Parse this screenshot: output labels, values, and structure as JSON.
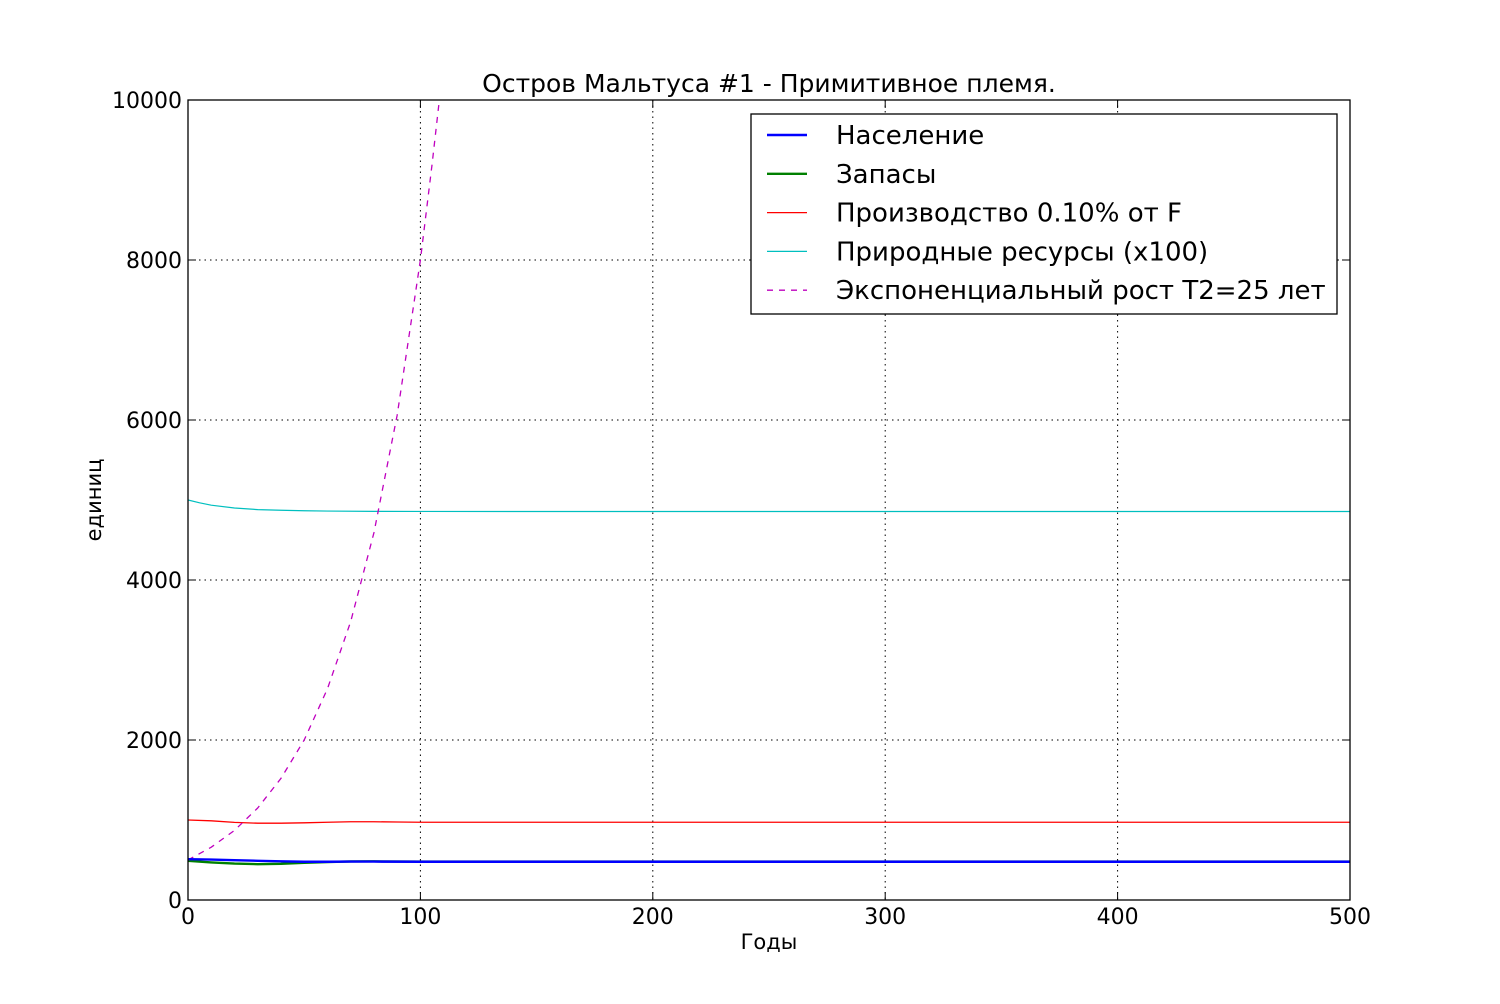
{
  "chart_data": {
    "type": "line",
    "title": "Остров Мальтуса #1 - Примитивное племя.",
    "xlabel": "Годы",
    "ylabel": "единиц",
    "xlim": [
      0,
      500
    ],
    "ylim": [
      0,
      10000
    ],
    "x_ticks": [
      0,
      100,
      200,
      300,
      400,
      500
    ],
    "y_ticks": [
      0,
      2000,
      4000,
      6000,
      8000,
      10000
    ],
    "x_tick_labels": [
      "0",
      "100",
      "200",
      "300",
      "400",
      "500"
    ],
    "y_tick_labels": [
      "0",
      "2000",
      "4000",
      "6000",
      "8000",
      "10000"
    ],
    "grid": true,
    "legend_position": "top-right",
    "series": [
      {
        "name": "Население",
        "color": "#0000ff",
        "style": "solid",
        "x": [
          0,
          10,
          20,
          30,
          40,
          50,
          60,
          70,
          80,
          100,
          150,
          200,
          300,
          400,
          500
        ],
        "y": [
          510,
          505,
          498,
          490,
          483,
          478,
          478,
          480,
          480,
          478,
          478,
          478,
          478,
          478,
          478
        ]
      },
      {
        "name": "Запасы",
        "color": "#008000",
        "style": "solid",
        "x": [
          0,
          10,
          20,
          30,
          40,
          50,
          60,
          70,
          80,
          100,
          150,
          200,
          300,
          400,
          500
        ],
        "y": [
          490,
          470,
          455,
          448,
          452,
          465,
          475,
          482,
          483,
          480,
          480,
          480,
          480,
          480,
          480
        ]
      },
      {
        "name": "Производство  0.10% от F",
        "color": "#ff0000",
        "style": "solid",
        "x": [
          0,
          10,
          20,
          30,
          40,
          50,
          60,
          70,
          80,
          90,
          100,
          150,
          200,
          300,
          400,
          500
        ],
        "y": [
          1000,
          990,
          970,
          960,
          960,
          965,
          972,
          978,
          978,
          975,
          972,
          972,
          972,
          972,
          972,
          972
        ]
      },
      {
        "name": "Природные ресурсы (x100)",
        "color": "#00bfbf",
        "style": "solid",
        "x": [
          0,
          5,
          10,
          20,
          30,
          40,
          50,
          60,
          80,
          100,
          150,
          200,
          300,
          400,
          500
        ],
        "y": [
          5000,
          4965,
          4935,
          4900,
          4880,
          4872,
          4866,
          4862,
          4858,
          4857,
          4856,
          4856,
          4856,
          4856,
          4856
        ]
      },
      {
        "name": "Экспоненциальный рост T2=25 лет",
        "color": "#bf00bf",
        "style": "dashed",
        "x": [
          0,
          10,
          20,
          30,
          40,
          50,
          60,
          70,
          80,
          90,
          100,
          105,
          108
        ],
        "y": [
          500,
          660,
          870,
          1150,
          1520,
          2000,
          2640,
          3480,
          4590,
          6060,
          8000,
          9190,
          9960
        ]
      }
    ]
  }
}
